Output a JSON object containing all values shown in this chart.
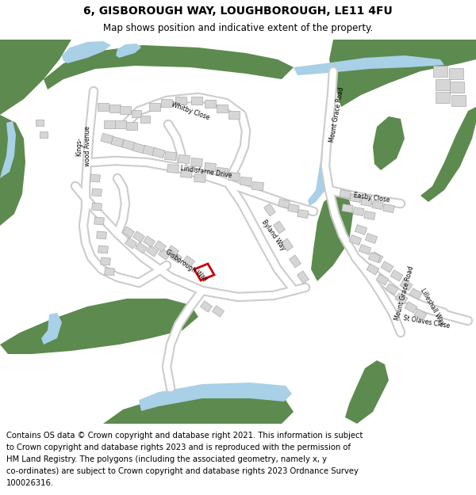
{
  "title_line1": "6, GISBOROUGH WAY, LOUGHBOROUGH, LE11 4FU",
  "title_line2": "Map shows position and indicative extent of the property.",
  "footer_text": "Contains OS data © Crown copyright and database right 2021. This information is subject to Crown copyright and database rights 2023 and is reproduced with the permission of HM Land Registry. The polygons (including the associated geometry, namely x, y co-ordinates) are subject to Crown copyright and database rights 2023 Ordnance Survey 100026316.",
  "bg_color": "#ffffff",
  "map_bg": "#f2f2f2",
  "green_color": "#5d8a4e",
  "water_color": "#a8d0e6",
  "building_color": "#d6d6d6",
  "building_outline": "#aaaaaa",
  "plot_color": "#cc0000",
  "title_fontsize": 10,
  "subtitle_fontsize": 8.5,
  "footer_fontsize": 7.2
}
